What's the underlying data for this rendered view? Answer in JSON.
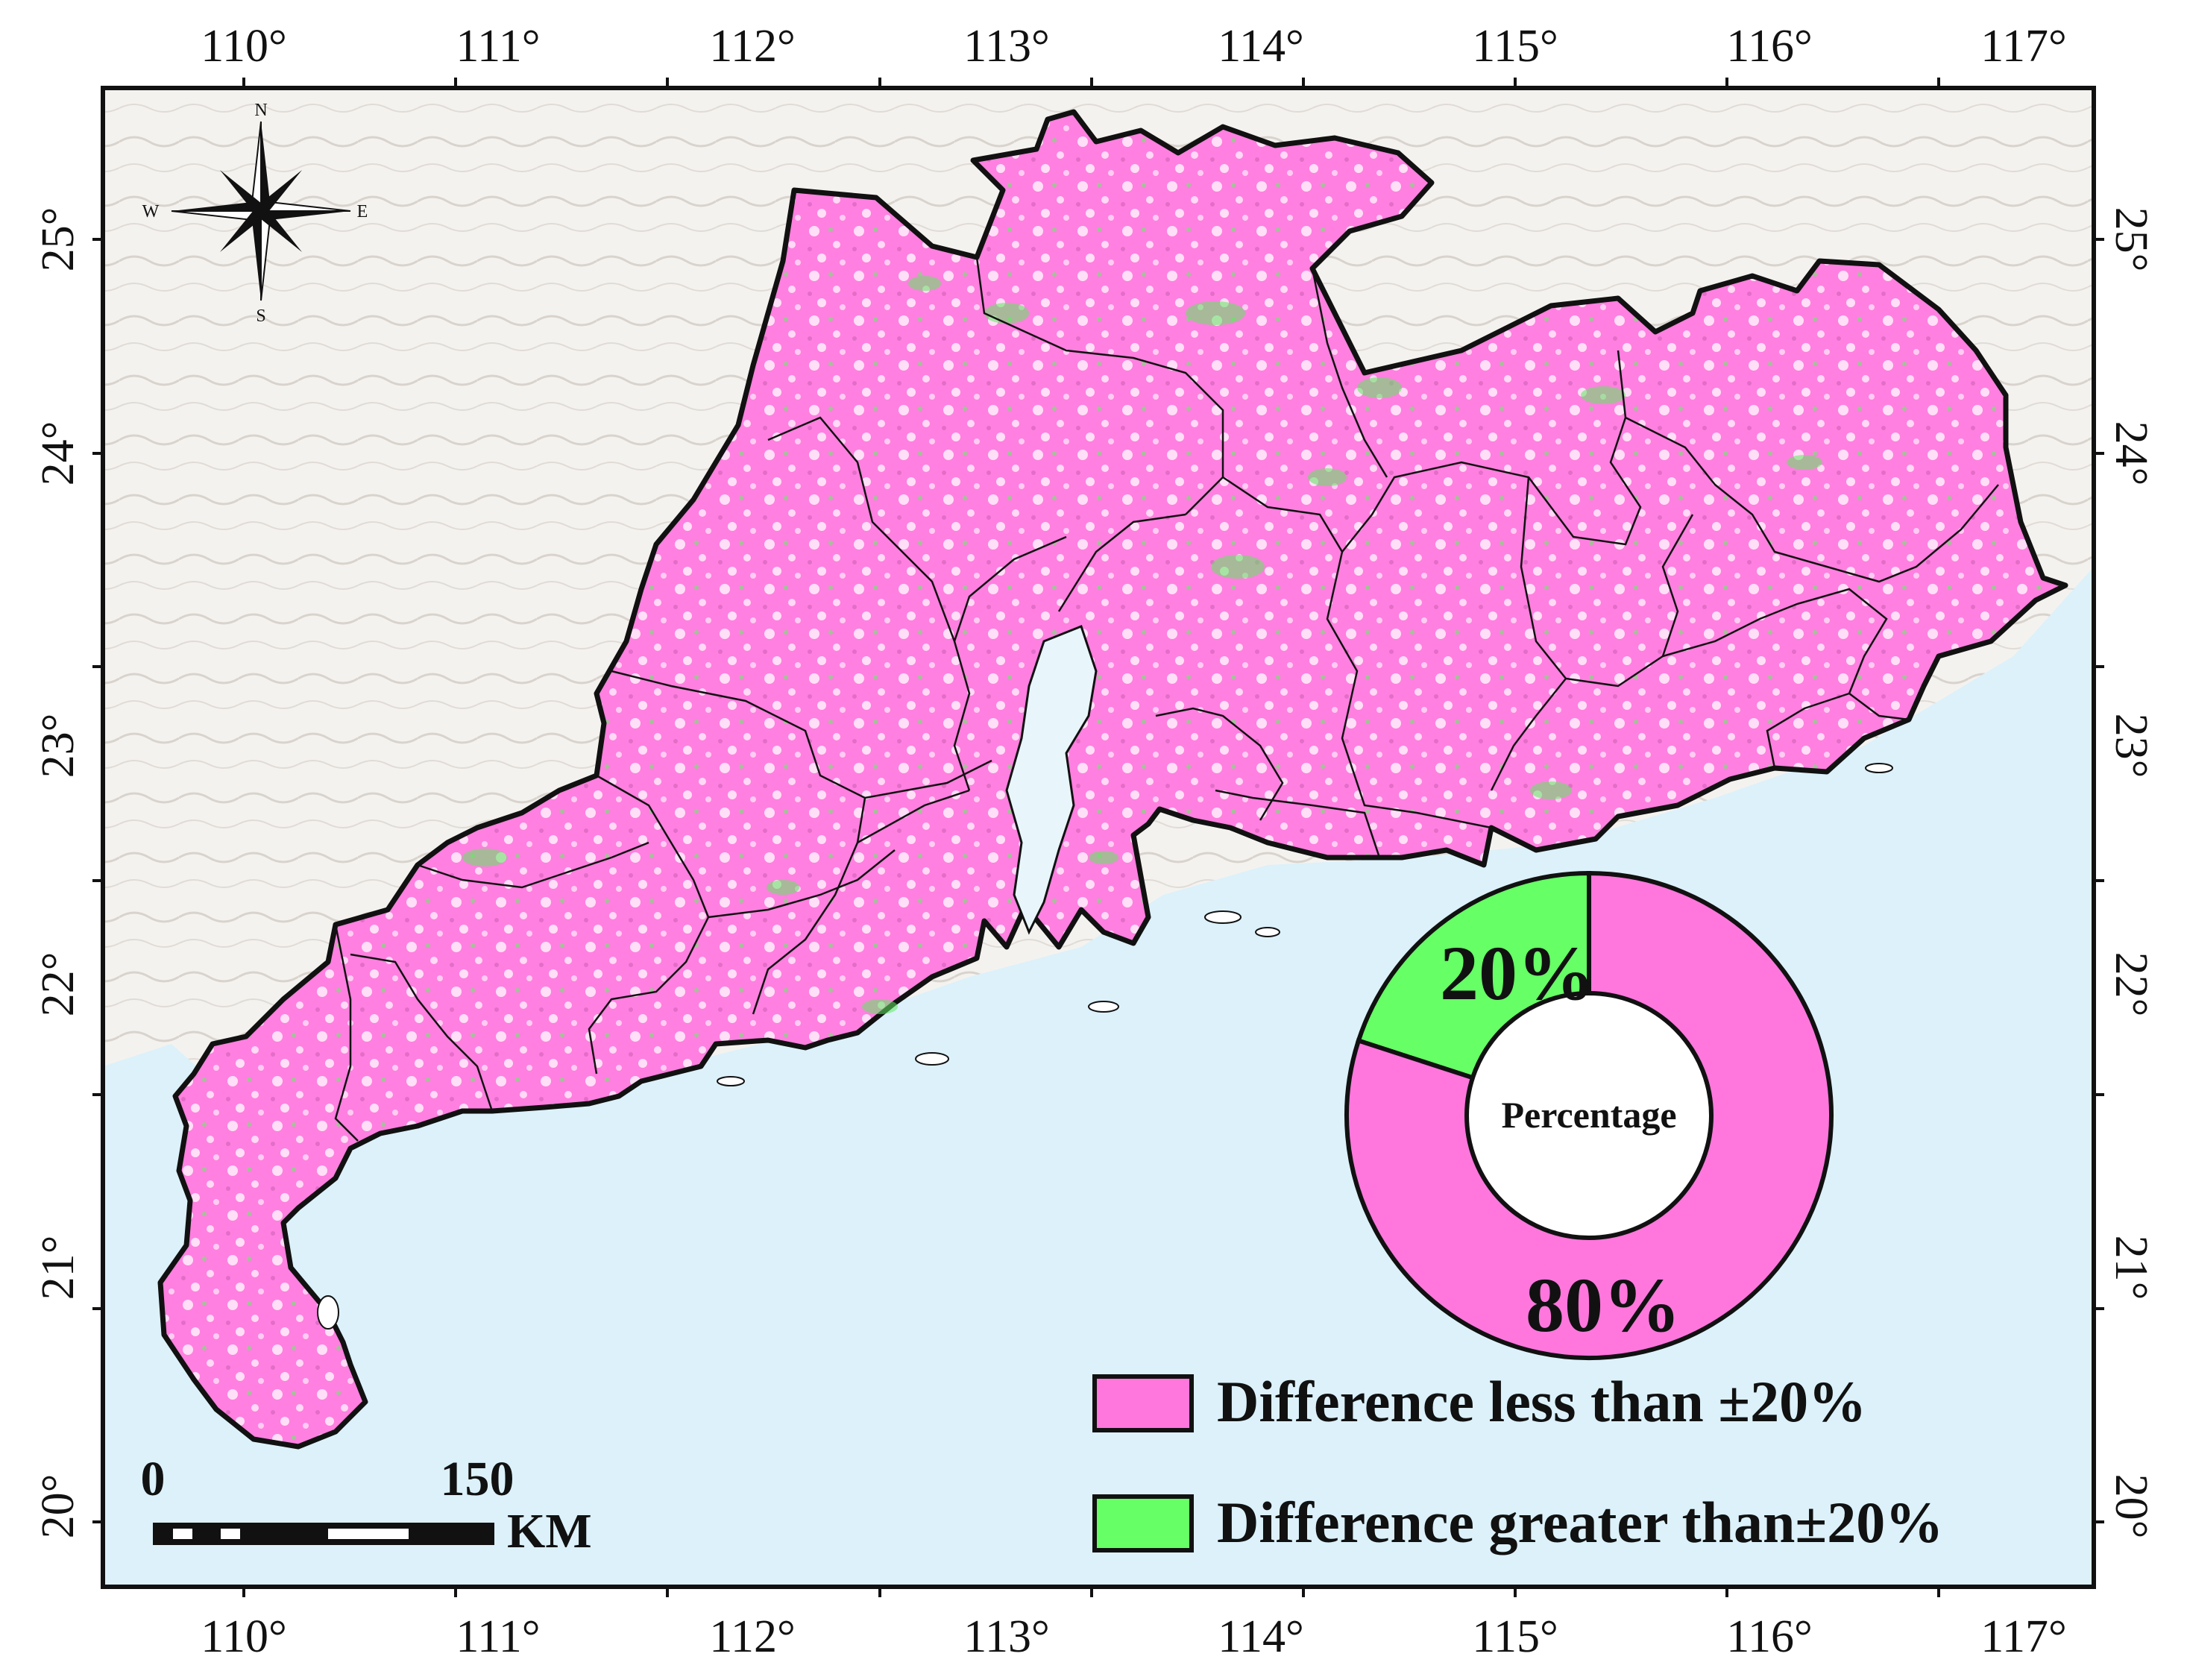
{
  "map": {
    "longitude_labels": [
      "110°",
      "111°",
      "112°",
      "113°",
      "114°",
      "115°",
      "116°",
      "117°"
    ],
    "latitude_labels": [
      "25°",
      "24°",
      "23°",
      "22°",
      "21°",
      "20°"
    ],
    "colors": {
      "land_less": "#ff77dd",
      "land_greater": "#66ff66",
      "sea": "#dff3fb",
      "land_background": "#f3f1ee",
      "boundary": "#111111"
    }
  },
  "compass": {
    "north": "N",
    "south": "S",
    "east": "E",
    "west": "W"
  },
  "scale_bar": {
    "start_label": "0",
    "end_label": "150",
    "unit": "KM"
  },
  "legend": {
    "items": [
      {
        "label": "Difference less than ±20%",
        "color": "#ff77dd"
      },
      {
        "label": "Difference greater than±20%",
        "color": "#66ff66"
      }
    ]
  },
  "chart_data": {
    "type": "pie",
    "center_label": "Percentage",
    "slices": [
      {
        "label": "20%",
        "value": 20,
        "color": "#66ff66"
      },
      {
        "label": "80%",
        "value": 80,
        "color": "#ff77dd"
      }
    ]
  }
}
